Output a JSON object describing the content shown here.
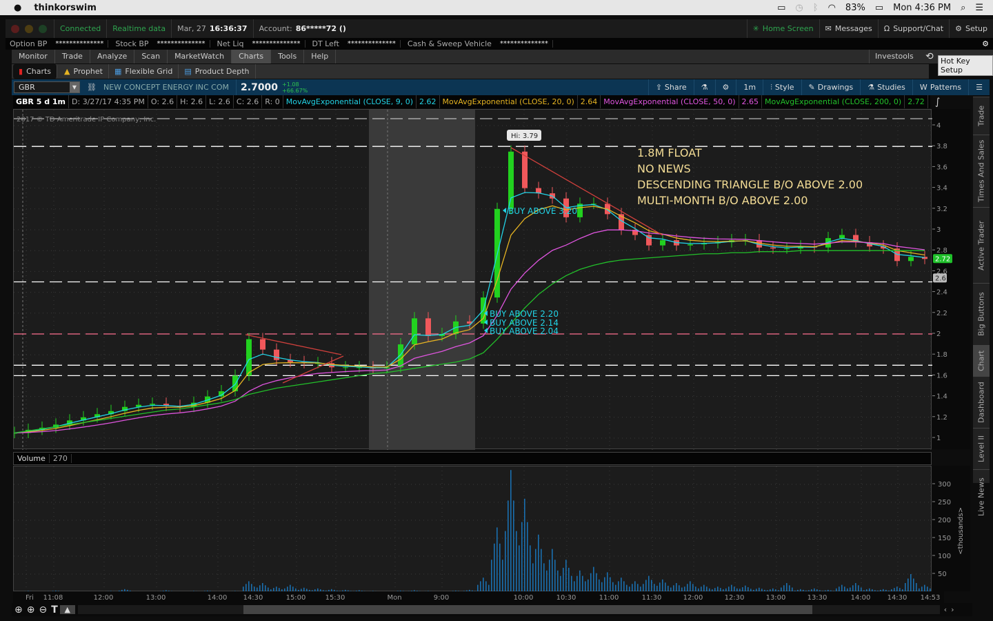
{
  "menubar": {
    "app": "thinkorswim",
    "battery": "83%",
    "clock": "Mon 4:36 PM"
  },
  "appbar": {
    "connected": "Connected",
    "realtime": "Realtime data",
    "date": "Mar, 27",
    "time": "16:36:37",
    "account_label": "Account:",
    "account": "86*****72 ()",
    "home": "Home Screen",
    "messages": "Messages",
    "support": "Support/Chat",
    "setup": "Setup"
  },
  "account_row": [
    {
      "label": "Option BP",
      "value": "**************"
    },
    {
      "label": "Stock BP",
      "value": "**************"
    },
    {
      "label": "Net Liq",
      "value": "**************"
    },
    {
      "label": "DT Left",
      "value": "**************"
    },
    {
      "label": "Cash & Sweep Vehicle",
      "value": "**************"
    }
  ],
  "menu_tabs": [
    "Monitor",
    "Trade",
    "Analyze",
    "Scan",
    "MarketWatch",
    "Charts",
    "Tools",
    "Help"
  ],
  "menu_active": "Charts",
  "menu_right": {
    "investools": "Investools",
    "tooltip": "Hot Key Setup"
  },
  "sub_tabs": [
    "Charts",
    "Prophet",
    "Flexible Grid",
    "Product Depth"
  ],
  "symbol": {
    "ticker": "GBR",
    "name": "NEW CONCEPT ENERGY INC COM",
    "price": "2.7000",
    "change": "+1.08",
    "change_pct": "+66.67%"
  },
  "toolbar": {
    "share": "Share",
    "interval": "1m",
    "style": "Style",
    "drawings": "Drawings",
    "studies": "Studies",
    "patterns": "Patterns"
  },
  "study_header": {
    "title": "GBR 5 d 1m",
    "date": "D: 3/27/17 4:35 PM",
    "open": "O: 2.6",
    "high": "H: 2.6",
    "low": "L: 2.6",
    "close": "C: 2.6",
    "range": "R: 0",
    "studies": [
      {
        "name": "MovAvgExponential (CLOSE, 9, 0)",
        "value": "2.62",
        "color": "#22d3e6"
      },
      {
        "name": "MovAvgExponential (CLOSE, 20, 0)",
        "value": "2.64",
        "color": "#e6b422"
      },
      {
        "name": "MovAvgExponential (CLOSE, 50, 0)",
        "value": "2.65",
        "color": "#e055e0"
      },
      {
        "name": "MovAvgExponential (CLOSE, 200, 0)",
        "value": "2.72",
        "color": "#22c02a"
      }
    ]
  },
  "copyright": "2017 © TD Ameritrade IP Company, Inc.",
  "annotations": {
    "hi": "Hi: 3.79",
    "notes": [
      "1.8M FLOAT",
      "NO NEWS",
      "DESCENDING TRIANGLE B/O ABOVE 2.00",
      "MULTI-MONTH B/O ABOVE 2.00"
    ],
    "buy_labels": [
      "BUY ABOVE 3.20",
      "BUY ABOVE 2.20",
      "BUY ABOVE 2.14",
      "BUY ABOVE 2.04"
    ]
  },
  "price_labels": {
    "last": "2.72",
    "close": "2.6"
  },
  "volume": {
    "label": "Volume",
    "value": "270",
    "unit": "<thousands>"
  },
  "side_tabs": [
    "Trade",
    "Times And Sales",
    "Active Trader",
    "Big Buttons",
    "Chart",
    "Dashboard",
    "Level II",
    "Live News"
  ],
  "side_active": "Chart",
  "chart_data": {
    "type": "candlestick",
    "price_ticks": [
      "1",
      "1.2",
      "1.4",
      "1.6",
      "1.8",
      "2",
      "2.2",
      "2.4",
      "2.6",
      "2.8",
      "3",
      "3.2",
      "3.4",
      "3.6",
      "3.8",
      "4"
    ],
    "ylim": [
      0.9,
      4.2
    ],
    "time_ticks": [
      "Fri",
      "11:08",
      "12:00",
      "13:00",
      "14:00",
      "14:30",
      "15:00",
      "15:30",
      "Mon",
      "9:00",
      "10:00",
      "10:30",
      "11:00",
      "11:30",
      "12:00",
      "12:30",
      "13:00",
      "13:30",
      "14:00",
      "14:30",
      "14:53"
    ],
    "close": [
      1.05,
      1.08,
      1.1,
      1.13,
      1.17,
      1.2,
      1.23,
      1.26,
      1.3,
      1.32,
      1.33,
      1.31,
      1.3,
      1.34,
      1.4,
      1.45,
      1.6,
      1.95,
      1.85,
      1.75,
      1.73,
      1.72,
      1.72,
      1.68,
      1.68,
      1.68,
      1.67,
      1.68,
      1.9,
      2.15,
      1.98,
      2.0,
      2.12,
      2.1,
      2.35,
      3.2,
      3.75,
      3.4,
      3.35,
      3.3,
      3.12,
      3.25,
      3.25,
      3.15,
      3.0,
      2.95,
      2.85,
      2.9,
      2.85,
      2.86,
      2.87,
      2.88,
      2.9,
      2.9,
      2.83,
      2.82,
      2.82,
      2.84,
      2.83,
      2.92,
      2.95,
      2.88,
      2.84,
      2.82,
      2.7,
      2.74,
      2.72
    ],
    "ema200": [
      1.05,
      1.07,
      1.09,
      1.11,
      1.13,
      1.15,
      1.17,
      1.19,
      1.21,
      1.23,
      1.25,
      1.27,
      1.28,
      1.3,
      1.32,
      1.34,
      1.37,
      1.42,
      1.45,
      1.48,
      1.5,
      1.52,
      1.54,
      1.56,
      1.58,
      1.6,
      1.62,
      1.63,
      1.65,
      1.67,
      1.69,
      1.71,
      1.73,
      1.76,
      1.82,
      1.95,
      2.1,
      2.25,
      2.38,
      2.48,
      2.56,
      2.62,
      2.66,
      2.69,
      2.71,
      2.72,
      2.73,
      2.74,
      2.75,
      2.76,
      2.77,
      2.77,
      2.78,
      2.78,
      2.79,
      2.79,
      2.79,
      2.8,
      2.8,
      2.8,
      2.8,
      2.8,
      2.8,
      2.8,
      2.8,
      2.8,
      2.8
    ],
    "horizontal_lines": [
      {
        "price": 3.8,
        "color": "#ffffff"
      },
      {
        "price": 2.5,
        "color": "#ffffff"
      },
      {
        "price": 2.0,
        "color": "#ff6f8f"
      },
      {
        "price": 1.7,
        "color": "#ffffff"
      },
      {
        "price": 1.6,
        "color": "#ffffff"
      }
    ],
    "volume_ticks": [
      "50",
      "100",
      "150",
      "200",
      "250",
      "300"
    ],
    "volume_k": [
      2,
      3,
      1,
      4,
      2,
      1,
      2,
      3,
      8,
      2,
      1,
      5,
      2,
      3,
      4,
      2,
      3,
      30,
      25,
      15,
      20,
      12,
      10,
      8,
      6,
      5,
      3,
      2,
      4,
      5,
      3,
      2,
      4,
      6,
      40,
      180,
      340,
      260,
      160,
      120,
      90,
      60,
      70,
      55,
      40,
      30,
      45,
      35,
      25,
      30,
      20,
      15,
      20,
      18,
      12,
      10,
      25,
      8,
      10,
      6,
      20,
      25,
      10,
      8,
      15,
      50,
      20
    ],
    "vlim": [
      0,
      340
    ]
  }
}
